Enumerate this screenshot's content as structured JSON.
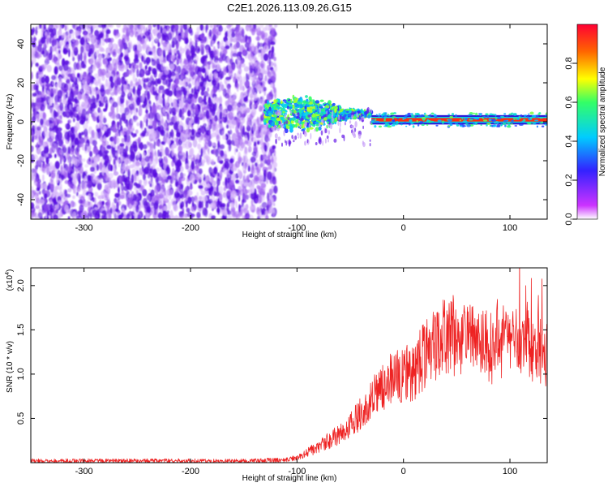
{
  "title": "C2E1.2026.113.09.26.G15",
  "chart_data": [
    {
      "type": "heatmap",
      "title": "C2E1.2026.113.09.26.G15",
      "xlabel": "Height of straight line (km)",
      "ylabel": "Frequency (Hz)",
      "xlim": [
        -350,
        135
      ],
      "ylim": [
        -50,
        50
      ],
      "xticks": [
        -300,
        -200,
        -100,
        0,
        100
      ],
      "yticks": [
        -40,
        -20,
        0,
        20,
        40
      ],
      "colorbar": {
        "label": "Normalized spectral amplitude",
        "range": [
          0,
          1
        ],
        "ticks": [
          0.0,
          0.2,
          0.4,
          0.6,
          0.8
        ],
        "colormap": [
          "#ffffff",
          "#cc33ff",
          "#3322ff",
          "#00ccff",
          "#33ff66",
          "#ffff00",
          "#ff6600",
          "#ff0033"
        ]
      },
      "regions": [
        {
          "name": "noise",
          "x_range": [
            -350,
            -130
          ],
          "freq_range": [
            -50,
            50
          ],
          "amplitude": 0.1
        },
        {
          "name": "broad-signal",
          "x_range": [
            -130,
            -30
          ],
          "freq_center": 4,
          "freq_halfwidth": 6,
          "amplitude": 0.45
        },
        {
          "name": "carrier-line",
          "x_range": [
            -30,
            135
          ],
          "freq_center": 1,
          "freq_halfwidth": 2,
          "amplitude": 0.95
        }
      ]
    },
    {
      "type": "line",
      "xlabel": "Height of straight line (km)",
      "ylabel": "SNR (10 * v/v)",
      "multiplier": "(x10",
      "multiplier_exp": "4",
      "multiplier_close": ")",
      "xlim": [
        -350,
        135
      ],
      "ylim": [
        0,
        2.2
      ],
      "xticks": [
        -300,
        -200,
        -100,
        0,
        100
      ],
      "yticks": [
        0.5,
        1.0,
        1.5,
        2.0
      ],
      "ytick_labels": [
        "0.5",
        "1.0",
        "1.5",
        "2.0"
      ],
      "color": "#ee2222",
      "x": [
        -350,
        -300,
        -250,
        -200,
        -150,
        -110,
        -100,
        -90,
        -80,
        -70,
        -60,
        -50,
        -40,
        -30,
        -20,
        -10,
        0,
        10,
        20,
        30,
        40,
        50,
        60,
        70,
        80,
        90,
        100,
        110,
        120,
        135
      ],
      "y": [
        0.02,
        0.02,
        0.02,
        0.02,
        0.02,
        0.03,
        0.06,
        0.12,
        0.18,
        0.25,
        0.32,
        0.42,
        0.55,
        0.7,
        0.85,
        0.95,
        1.0,
        1.05,
        1.2,
        1.35,
        1.45,
        1.45,
        1.42,
        1.4,
        1.35,
        1.4,
        1.45,
        1.35,
        1.3,
        1.3
      ]
    }
  ]
}
